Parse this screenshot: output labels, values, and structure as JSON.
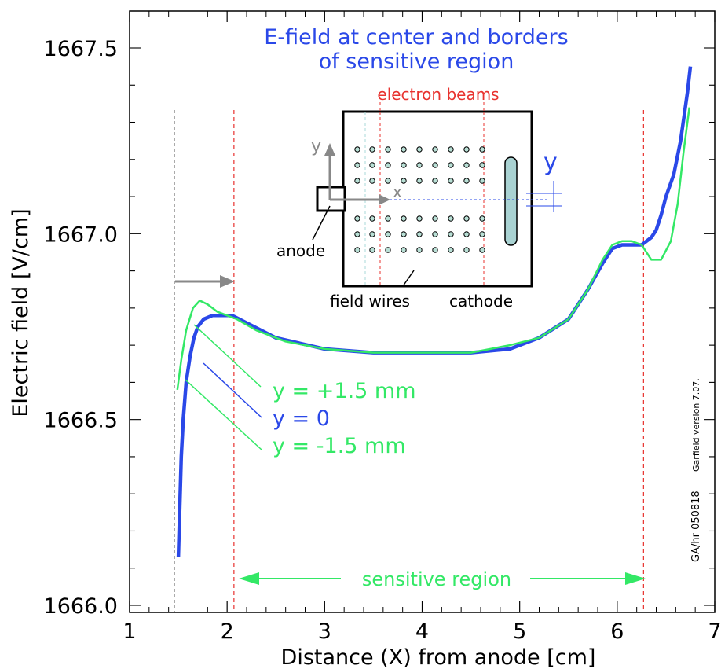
{
  "chart_data": {
    "type": "line",
    "title": "E-field at center and borders",
    "subtitle": "of sensitive region",
    "xlabel": "Distance (X) from anode  [cm]",
    "ylabel": "Electric field  [V/cm]",
    "xlim": [
      1,
      7
    ],
    "ylim": [
      1666.0,
      1667.6
    ],
    "x_ticks": [
      "1",
      "2",
      "3",
      "4",
      "5",
      "6",
      "7"
    ],
    "y_ticks": [
      "1666.0",
      "1666.5",
      "1667.0",
      "1667.5"
    ],
    "grid": false,
    "series": [
      {
        "name": "y = +1.5 mm",
        "color": "#33e866",
        "x": [
          1.49,
          1.53,
          1.58,
          1.65,
          1.72,
          1.8,
          1.9,
          2.0,
          2.1,
          2.3,
          2.6,
          3.0,
          3.5,
          4.0,
          4.5,
          4.9,
          5.2,
          5.5,
          5.7,
          5.85,
          5.95,
          6.05,
          6.15,
          6.25,
          6.35,
          6.45,
          6.55,
          6.62,
          6.68,
          6.74
        ],
        "values": [
          1666.58,
          1666.66,
          1666.74,
          1666.8,
          1666.82,
          1666.81,
          1666.79,
          1666.78,
          1666.77,
          1666.74,
          1666.71,
          1666.69,
          1666.68,
          1666.68,
          1666.68,
          1666.7,
          1666.72,
          1666.77,
          1666.85,
          1666.93,
          1666.97,
          1666.98,
          1666.98,
          1666.97,
          1666.93,
          1666.93,
          1666.98,
          1667.08,
          1667.22,
          1667.34
        ]
      },
      {
        "name": "y = 0",
        "color": "#2a48e8",
        "x": [
          1.5,
          1.51,
          1.53,
          1.55,
          1.58,
          1.62,
          1.66,
          1.7,
          1.76,
          1.85,
          1.95,
          2.05,
          2.2,
          2.5,
          3.0,
          3.5,
          4.0,
          4.5,
          4.9,
          5.2,
          5.5,
          5.7,
          5.85,
          5.95,
          6.05,
          6.15,
          6.25,
          6.3,
          6.35,
          6.4,
          6.45,
          6.5,
          6.58,
          6.65,
          6.72,
          6.75
        ],
        "values": [
          1666.13,
          1666.22,
          1666.4,
          1666.5,
          1666.6,
          1666.67,
          1666.72,
          1666.75,
          1666.77,
          1666.78,
          1666.78,
          1666.78,
          1666.76,
          1666.72,
          1666.69,
          1666.68,
          1666.68,
          1666.68,
          1666.69,
          1666.72,
          1666.77,
          1666.85,
          1666.92,
          1666.96,
          1666.97,
          1666.97,
          1666.97,
          1666.98,
          1666.99,
          1667.01,
          1667.05,
          1667.1,
          1667.16,
          1667.25,
          1667.38,
          1667.45
        ]
      },
      {
        "name": "y = -1.5 mm",
        "color": "#33e866",
        "x": [],
        "values": []
      }
    ],
    "annotations": {
      "electron_beams": "electron beams",
      "sensitive_region": "sensitive region",
      "anode": "anode",
      "field_wires": "field wires",
      "cathode": "cathode",
      "y_axis_inset": "y",
      "x_axis_inset": "x",
      "y_marker": "y",
      "label_plus": "y = +1.5 mm",
      "label_zero": "y = 0",
      "label_minus": "y = -1.5 mm",
      "side_note_1": "Garfield version 7.07.",
      "side_note_2": "GA/hr 050818"
    },
    "reference_lines": {
      "gray_dashed_x": 1.46,
      "red_dashed_x": [
        2.07,
        6.27
      ]
    },
    "colors": {
      "title": "#2a48e8",
      "green": "#33e866",
      "blue": "#2a48e8",
      "red": "#e8322e",
      "gray": "#888888"
    }
  }
}
